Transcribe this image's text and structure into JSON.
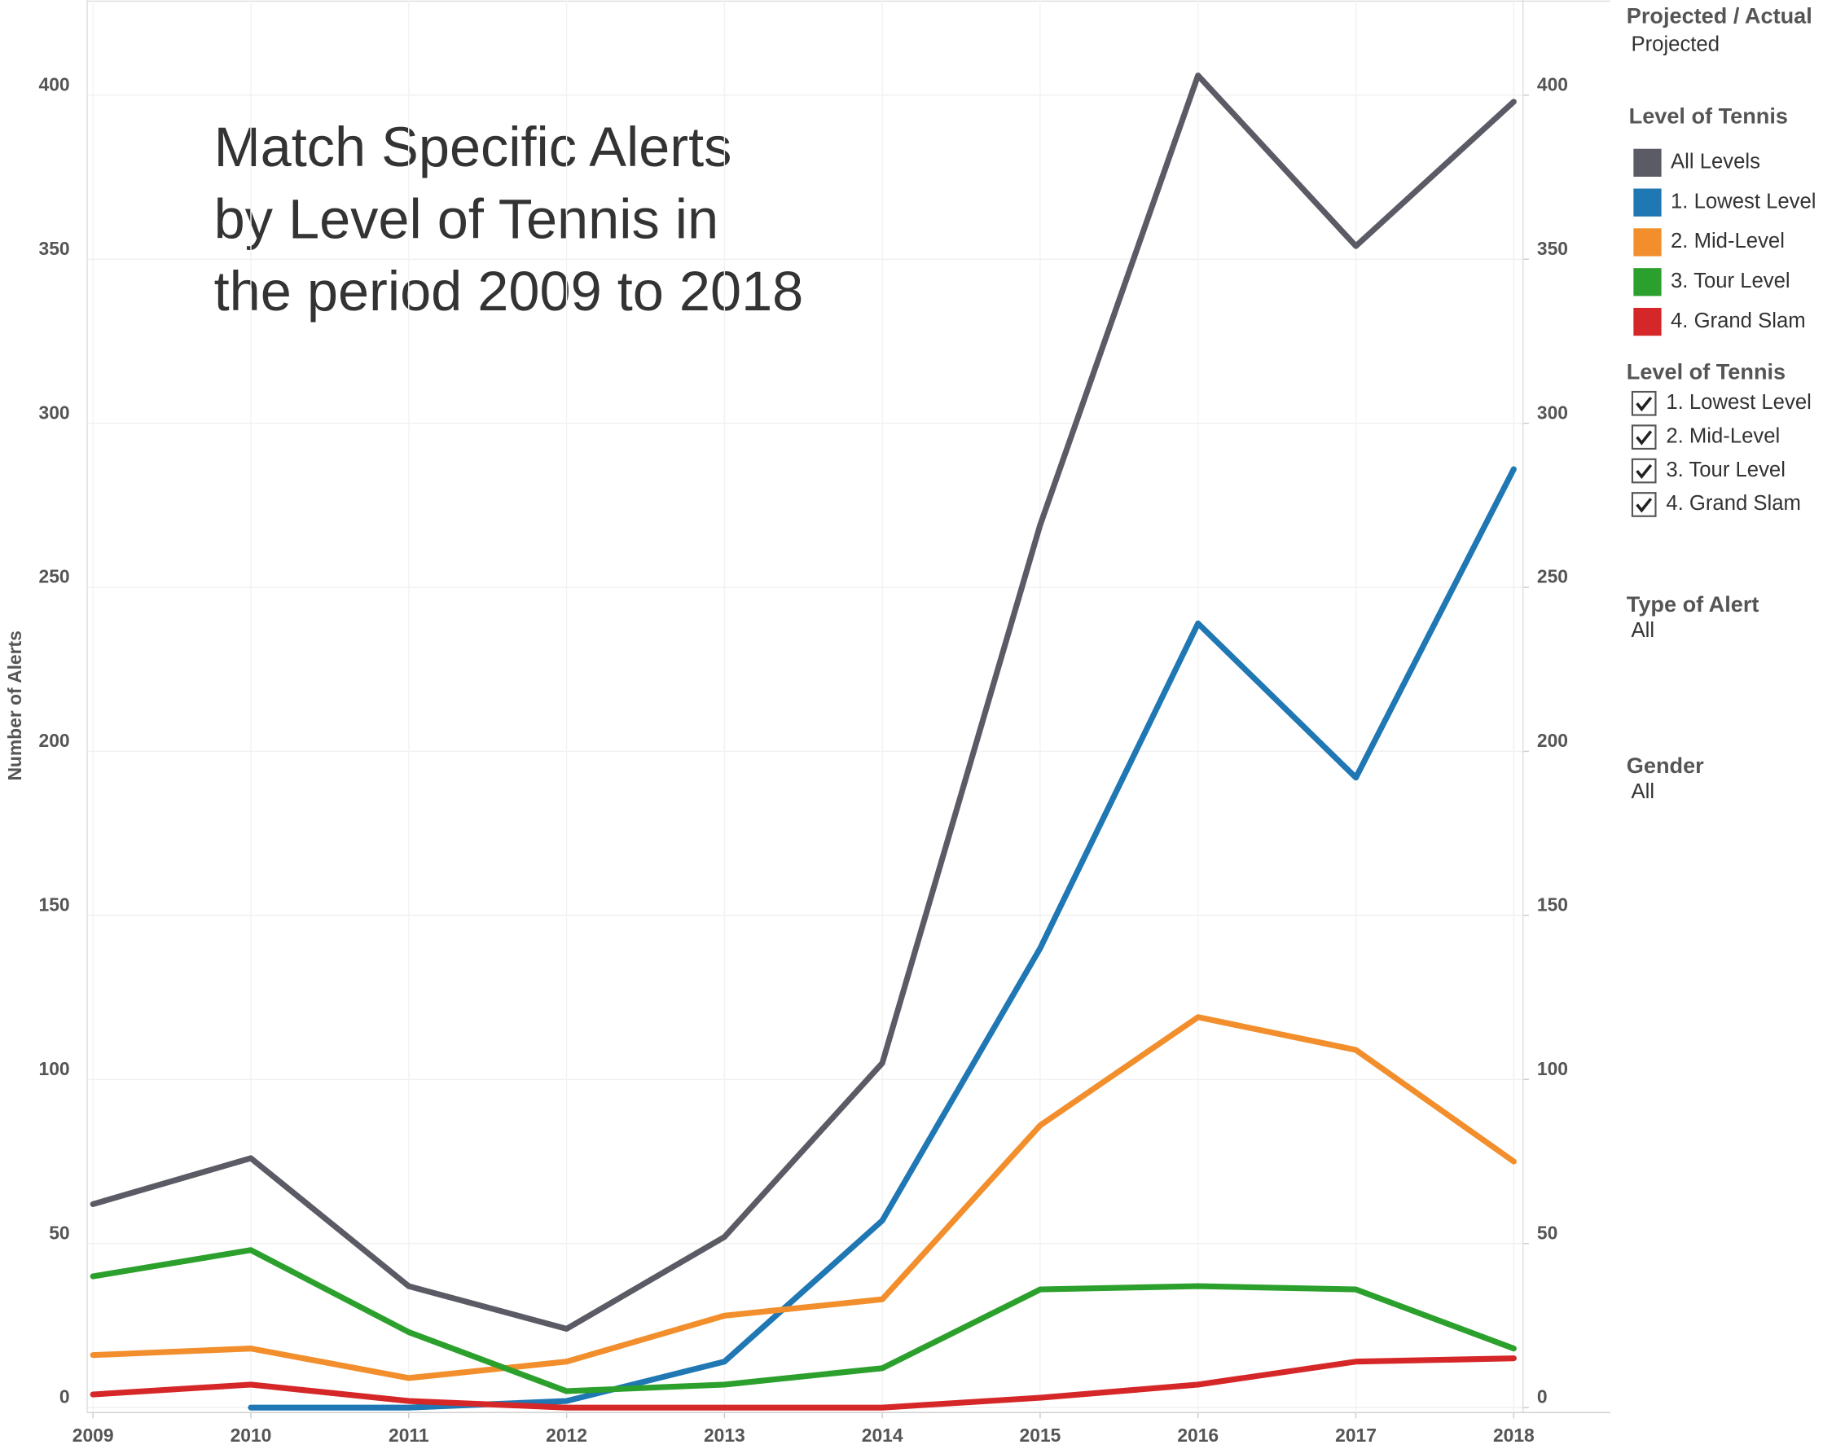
{
  "chart_data": {
    "type": "line",
    "title": [
      "Match Specific Alerts",
      "by Level of Tennis in",
      "the period 2009 to 2018"
    ],
    "y_label": "Number of Alerts",
    "categories": [
      "2009",
      "2010",
      "2011",
      "2012",
      "2013",
      "2014",
      "2015",
      "2016",
      "2017",
      "2018"
    ],
    "series": [
      {
        "name": "All Levels",
        "color": "#5b5b66",
        "values": [
          62,
          76,
          37,
          24,
          52,
          105,
          269,
          406,
          354,
          398
        ]
      },
      {
        "name": "1. Lowest Level",
        "color": "#1f77b4",
        "values": [
          null,
          0,
          0,
          2,
          14,
          57,
          140,
          239,
          192,
          286
        ]
      },
      {
        "name": "2. Mid-Level",
        "color": "#f28e2b",
        "values": [
          16,
          18,
          9,
          14,
          28,
          33,
          86,
          119,
          109,
          75
        ]
      },
      {
        "name": "3. Tour Level",
        "color": "#2ca02c",
        "values": [
          40,
          48,
          23,
          5,
          7,
          12,
          36,
          37,
          36,
          18
        ]
      },
      {
        "name": "4. Grand Slam",
        "color": "#d62728",
        "values": [
          4,
          7,
          2,
          0,
          0,
          0,
          3,
          7,
          14,
          15
        ]
      }
    ],
    "ylim": [
      -1.5,
      429
    ],
    "yticks": [
      0,
      50,
      100,
      150,
      200,
      250,
      300,
      350,
      400
    ],
    "y2lim": [
      -1.5,
      429
    ],
    "y2ticks": [
      0,
      50,
      100,
      150,
      200,
      250,
      300,
      350,
      400
    ],
    "grid": true,
    "legend_title": "Level of Tennis"
  },
  "sidebar": {
    "projected": {
      "title": "Projected / Actual",
      "value": "Projected"
    },
    "level_filter": {
      "title": "Level of Tennis",
      "items": [
        "1. Lowest Level",
        "2. Mid-Level",
        "3. Tour Level",
        "4. Grand Slam"
      ]
    },
    "type_of_alert": {
      "title": "Type of Alert",
      "value": "All"
    },
    "gender": {
      "title": "Gender",
      "value": "All"
    }
  }
}
